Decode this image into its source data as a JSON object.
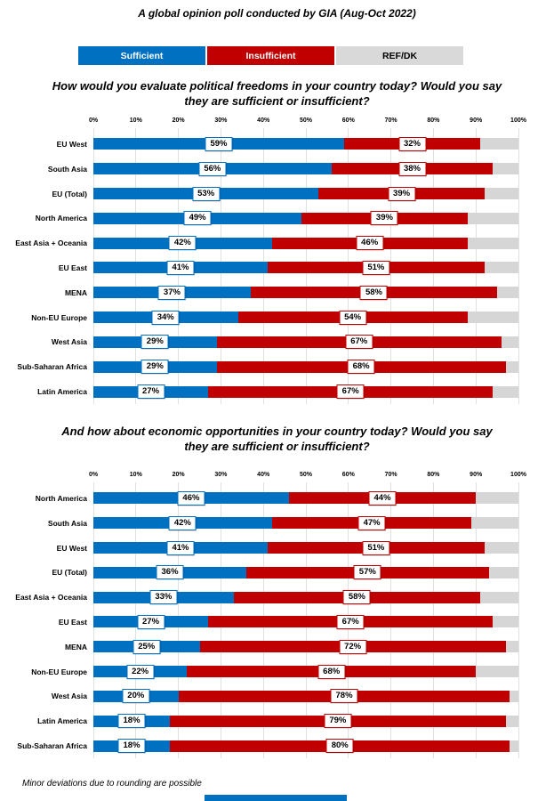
{
  "page": {
    "main_title": "A global opinion poll conducted by GIA (Aug-Oct 2022)",
    "footnote": "Minor deviations due to rounding are possible"
  },
  "colors": {
    "sufficient_blue": "#0070C0",
    "insufficient_red": "#C00000",
    "refdk_gray": "#D6D6D6",
    "gridline": "#E0E0E0",
    "background": "#FFFFFF",
    "bottom_strip_blue": "#0070C0"
  },
  "legend": {
    "items": [
      {
        "label": "Sufficient",
        "color": "#0070C0",
        "text_color": "#FFFFFF"
      },
      {
        "label": "Insufficient",
        "color": "#C00000",
        "text_color": "#FFFFFF"
      },
      {
        "label": "REF/DK",
        "color": "#D9D9D9",
        "text_color": "#000000"
      }
    ]
  },
  "chart_data": [
    {
      "type": "bar",
      "orientation": "horizontal",
      "stacked": true,
      "title": "How would you evaluate political freedoms in your country today?  Would you say\nthey are sufficient or insufficient?",
      "x_axis": {
        "min": 0,
        "max": 100,
        "ticks": [
          "0%",
          "10%",
          "20%",
          "30%",
          "40%",
          "50%",
          "60%",
          "70%",
          "80%",
          "90%",
          "100%"
        ]
      },
      "categories": [
        "EU West",
        "South Asia",
        "EU (Total)",
        "North America",
        "East Asia + Oceania",
        "EU East",
        "MENA",
        "Non-EU Europe",
        "West Asia",
        "Sub-Saharan Africa",
        "Latin America"
      ],
      "series": [
        {
          "name": "Sufficient",
          "color": "#0070C0",
          "show_labels": true,
          "values": [
            59,
            56,
            53,
            49,
            42,
            41,
            37,
            34,
            29,
            29,
            27
          ]
        },
        {
          "name": "Insufficient",
          "color": "#C00000",
          "show_labels": true,
          "values": [
            32,
            38,
            39,
            39,
            46,
            51,
            58,
            54,
            67,
            68,
            67
          ]
        },
        {
          "name": "REF/DK",
          "color": "#D6D6D6",
          "show_labels": false,
          "values": [
            9,
            6,
            8,
            12,
            12,
            8,
            5,
            12,
            4,
            3,
            6
          ]
        }
      ],
      "value_label_suffix": "%",
      "legend_position": "top",
      "grid": true
    },
    {
      "type": "bar",
      "orientation": "horizontal",
      "stacked": true,
      "title": "And how about economic opportunities in your country today?  Would you say\nthey are sufficient or insufficient?",
      "x_axis": {
        "min": 0,
        "max": 100,
        "ticks": [
          "0%",
          "10%",
          "20%",
          "30%",
          "40%",
          "50%",
          "60%",
          "70%",
          "80%",
          "90%",
          "100%"
        ]
      },
      "categories": [
        "North America",
        "South Asia",
        "EU West",
        "EU (Total)",
        "East Asia + Oceania",
        "EU East",
        "MENA",
        "Non-EU Europe",
        "West Asia",
        "Latin America",
        "Sub-Saharan Africa"
      ],
      "series": [
        {
          "name": "Sufficient",
          "color": "#0070C0",
          "show_labels": true,
          "values": [
            46,
            42,
            41,
            36,
            33,
            27,
            25,
            22,
            20,
            18,
            18
          ]
        },
        {
          "name": "Insufficient",
          "color": "#C00000",
          "show_labels": true,
          "values": [
            44,
            47,
            51,
            57,
            58,
            67,
            72,
            68,
            78,
            79,
            80
          ]
        },
        {
          "name": "REF/DK",
          "color": "#D6D6D6",
          "show_labels": false,
          "values": [
            10,
            11,
            8,
            7,
            9,
            6,
            3,
            10,
            2,
            3,
            2
          ]
        }
      ],
      "value_label_suffix": "%",
      "legend_position": "top",
      "grid": true
    }
  ]
}
